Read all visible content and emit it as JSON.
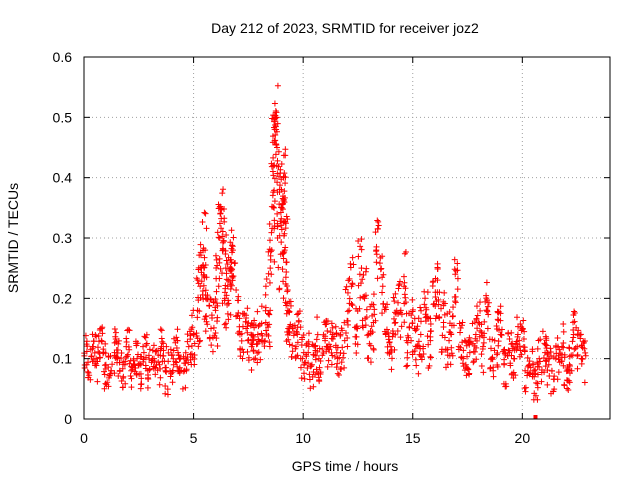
{
  "chart_data": {
    "type": "scatter",
    "title": "Day 212 of 2023, SRMTID for receiver joz2",
    "xlabel": "GPS time / hours",
    "ylabel": "SRMTID / TECUs",
    "xlim": [
      0,
      24
    ],
    "ylim": [
      0,
      0.6
    ],
    "x_ticks": [
      0,
      5,
      10,
      15,
      20
    ],
    "x_tick_labels": [
      "0",
      "5",
      "10",
      "15",
      "20"
    ],
    "y_ticks": [
      0,
      0.1,
      0.2,
      0.3,
      0.4,
      0.5,
      0.6
    ],
    "y_tick_labels": [
      "0",
      "0.1",
      "0.2",
      "0.3",
      "0.4",
      "0.5",
      "0.6"
    ],
    "grid": true,
    "marker": "+",
    "color": "#ff0000",
    "series": [
      {
        "name": "SRMTID",
        "x": [
          0.0,
          0.2,
          0.4,
          0.6,
          0.8,
          1.0,
          1.2,
          1.4,
          1.6,
          1.8,
          2.0,
          2.2,
          2.4,
          2.6,
          2.8,
          3.0,
          3.2,
          3.4,
          3.6,
          3.8,
          4.0,
          4.2,
          4.4,
          4.6,
          4.8,
          5.0,
          5.2,
          5.3,
          5.4,
          5.5,
          5.6,
          5.8,
          6.0,
          6.1,
          6.2,
          6.3,
          6.4,
          6.5,
          6.6,
          6.7,
          6.8,
          7.0,
          7.2,
          7.4,
          7.6,
          7.8,
          8.0,
          8.2,
          8.4,
          8.5,
          8.6,
          8.65,
          8.7,
          8.75,
          8.8,
          8.9,
          9.0,
          9.05,
          9.1,
          9.15,
          9.2,
          9.3,
          9.4,
          9.6,
          9.8,
          10.0,
          10.2,
          10.4,
          10.6,
          10.8,
          11.0,
          11.2,
          11.4,
          11.6,
          11.8,
          12.0,
          12.2,
          12.4,
          12.6,
          12.8,
          13.0,
          13.2,
          13.4,
          13.6,
          13.8,
          14.0,
          14.2,
          14.4,
          14.6,
          14.8,
          15.0,
          15.2,
          15.4,
          15.6,
          15.8,
          16.0,
          16.2,
          16.4,
          16.6,
          16.8,
          17.0,
          17.2,
          17.4,
          17.6,
          17.8,
          18.0,
          18.2,
          18.4,
          18.6,
          18.8,
          19.0,
          19.2,
          19.4,
          19.6,
          19.8,
          20.0,
          20.2,
          20.4,
          20.6,
          20.8,
          21.0,
          21.2,
          21.4,
          21.6,
          21.8,
          22.0,
          22.2,
          22.4,
          22.6,
          22.8
        ],
        "y": [
          0.11,
          0.09,
          0.12,
          0.1,
          0.13,
          0.09,
          0.08,
          0.11,
          0.1,
          0.09,
          0.12,
          0.08,
          0.1,
          0.09,
          0.11,
          0.08,
          0.1,
          0.09,
          0.12,
          0.08,
          0.09,
          0.11,
          0.1,
          0.08,
          0.12,
          0.14,
          0.18,
          0.22,
          0.25,
          0.28,
          0.2,
          0.15,
          0.18,
          0.22,
          0.3,
          0.34,
          0.25,
          0.2,
          0.22,
          0.26,
          0.28,
          0.17,
          0.14,
          0.15,
          0.12,
          0.13,
          0.14,
          0.16,
          0.18,
          0.25,
          0.35,
          0.42,
          0.48,
          0.5,
          0.45,
          0.3,
          0.35,
          0.38,
          0.4,
          0.28,
          0.26,
          0.18,
          0.15,
          0.12,
          0.14,
          0.1,
          0.11,
          0.09,
          0.12,
          0.1,
          0.13,
          0.12,
          0.14,
          0.11,
          0.13,
          0.18,
          0.22,
          0.15,
          0.24,
          0.2,
          0.14,
          0.16,
          0.28,
          0.22,
          0.14,
          0.12,
          0.16,
          0.18,
          0.22,
          0.13,
          0.15,
          0.12,
          0.14,
          0.17,
          0.13,
          0.19,
          0.21,
          0.16,
          0.13,
          0.14,
          0.24,
          0.12,
          0.1,
          0.11,
          0.14,
          0.16,
          0.12,
          0.18,
          0.1,
          0.13,
          0.14,
          0.09,
          0.11,
          0.1,
          0.13,
          0.15,
          0.08,
          0.09,
          0.07,
          0.1,
          0.11,
          0.09,
          0.08,
          0.1,
          0.12,
          0.08,
          0.09,
          0.14,
          0.12,
          0.1
        ],
        "y_spread": [
          0.03,
          0.04,
          0.03,
          0.04,
          0.03,
          0.04,
          0.03,
          0.04,
          0.03,
          0.04,
          0.03,
          0.04,
          0.03,
          0.04,
          0.03,
          0.04,
          0.03,
          0.04,
          0.03,
          0.04,
          0.03,
          0.04,
          0.03,
          0.04,
          0.03,
          0.05,
          0.06,
          0.06,
          0.07,
          0.07,
          0.06,
          0.05,
          0.06,
          0.06,
          0.06,
          0.05,
          0.06,
          0.05,
          0.06,
          0.05,
          0.05,
          0.05,
          0.04,
          0.04,
          0.04,
          0.04,
          0.05,
          0.05,
          0.06,
          0.08,
          0.09,
          0.08,
          0.07,
          0.06,
          0.07,
          0.09,
          0.08,
          0.06,
          0.05,
          0.08,
          0.08,
          0.06,
          0.05,
          0.04,
          0.04,
          0.04,
          0.04,
          0.04,
          0.05,
          0.04,
          0.05,
          0.05,
          0.05,
          0.04,
          0.05,
          0.06,
          0.05,
          0.05,
          0.06,
          0.05,
          0.05,
          0.05,
          0.06,
          0.05,
          0.05,
          0.04,
          0.05,
          0.05,
          0.06,
          0.05,
          0.05,
          0.05,
          0.05,
          0.05,
          0.05,
          0.05,
          0.05,
          0.05,
          0.05,
          0.05,
          0.05,
          0.05,
          0.04,
          0.04,
          0.05,
          0.05,
          0.05,
          0.05,
          0.04,
          0.05,
          0.05,
          0.04,
          0.04,
          0.04,
          0.04,
          0.05,
          0.04,
          0.04,
          0.04,
          0.05,
          0.04,
          0.04,
          0.04,
          0.04,
          0.04,
          0.04,
          0.04,
          0.04,
          0.04,
          0.04
        ],
        "points_per_x": 12
      }
    ]
  }
}
